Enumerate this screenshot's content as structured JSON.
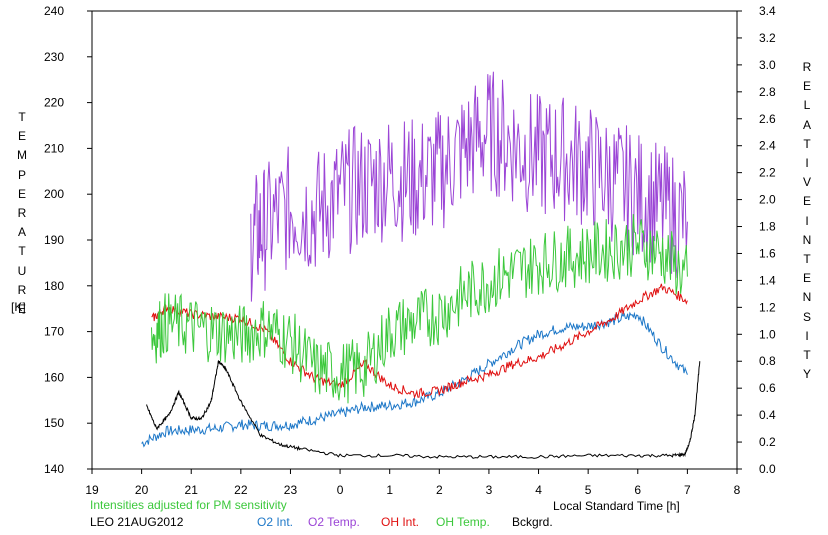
{
  "chart_data": {
    "type": "line",
    "left_axis_title": "TEMPERATURE",
    "left_axis_unit": "[K]",
    "right_axis_title": "RELATIVE INTENSITY",
    "xlabel": "Local Standard Time [h]",
    "x_ticks": [
      "19",
      "20",
      "21",
      "22",
      "23",
      "0",
      "1",
      "2",
      "3",
      "4",
      "5",
      "6",
      "7",
      "8"
    ],
    "x_range_hours": [
      19,
      32
    ],
    "y_left": {
      "ticks": [
        "140",
        "150",
        "160",
        "170",
        "180",
        "190",
        "200",
        "210",
        "220",
        "230",
        "240"
      ],
      "range": [
        140,
        240
      ]
    },
    "y_right": {
      "ticks": [
        "0.0",
        "0.2",
        "0.4",
        "0.6",
        "0.8",
        "1.0",
        "1.2",
        "1.4",
        "1.6",
        "1.8",
        "2.0",
        "2.2",
        "2.4",
        "2.6",
        "2.8",
        "3.0",
        "3.2",
        "3.4"
      ],
      "range": [
        0,
        3.4
      ]
    },
    "note": "Intensities adjusted for PM sensitivity",
    "station_date": "LEO 21AUG2012",
    "legend_placement": "bottom",
    "series": [
      {
        "name": "O2 Int.",
        "color": "#1e78c8",
        "axis": "right",
        "x": [
          20.0,
          20.5,
          21.0,
          21.5,
          22.0,
          22.5,
          23.0,
          23.5,
          24.0,
          24.5,
          25.0,
          25.5,
          26.0,
          26.5,
          27.0,
          27.5,
          28.0,
          28.5,
          29.0,
          29.5,
          30.0,
          30.5,
          31.0
        ],
        "y": [
          0.19,
          0.28,
          0.29,
          0.3,
          0.33,
          0.32,
          0.33,
          0.37,
          0.41,
          0.46,
          0.47,
          0.5,
          0.56,
          0.66,
          0.78,
          0.9,
          1.0,
          1.05,
          1.06,
          1.1,
          1.15,
          0.9,
          0.7
        ]
      },
      {
        "name": "O2 Temp.",
        "color": "#9b45d6",
        "axis": "left",
        "x": [
          22.2,
          22.5,
          23.0,
          23.5,
          24.0,
          24.5,
          25.0,
          25.5,
          26.0,
          26.5,
          27.0,
          27.5,
          28.0,
          28.5,
          29.0,
          29.5,
          30.0,
          30.5,
          31.0
        ],
        "y": [
          190,
          193,
          197,
          196,
          200,
          202,
          204,
          203,
          205,
          210,
          214,
          211,
          208,
          208,
          206,
          203,
          200,
          197,
          194
        ]
      },
      {
        "name": "OH Int.",
        "color": "#e01010",
        "axis": "right",
        "x": [
          20.2,
          20.5,
          21.0,
          21.5,
          22.0,
          22.5,
          23.0,
          23.5,
          24.0,
          24.5,
          25.0,
          25.5,
          26.0,
          26.5,
          27.0,
          27.5,
          28.0,
          28.5,
          29.0,
          29.5,
          30.0,
          30.5,
          31.0
        ],
        "y": [
          1.11,
          1.2,
          1.15,
          1.13,
          1.12,
          1.03,
          0.8,
          0.67,
          0.62,
          0.78,
          0.62,
          0.56,
          0.58,
          0.65,
          0.7,
          0.78,
          0.83,
          0.92,
          1.02,
          1.12,
          1.25,
          1.35,
          1.25
        ]
      },
      {
        "name": "OH Temp.",
        "color": "#3cc83c",
        "axis": "left",
        "x": [
          20.2,
          20.5,
          21.0,
          21.5,
          22.0,
          22.5,
          23.0,
          23.5,
          24.0,
          24.5,
          25.0,
          25.5,
          26.0,
          26.5,
          27.0,
          27.5,
          28.0,
          28.5,
          29.0,
          29.5,
          30.0,
          30.5,
          31.0
        ],
        "y": [
          169,
          172,
          171,
          170,
          169,
          171,
          168,
          162,
          161,
          162,
          170,
          172,
          174,
          178,
          181,
          183,
          185,
          186,
          187,
          188,
          189,
          187,
          182
        ]
      },
      {
        "name": "Bckgrd.",
        "color": "#000000",
        "axis": "right",
        "x": [
          20.1,
          20.3,
          20.55,
          20.75,
          21.0,
          21.2,
          21.4,
          21.55,
          21.7,
          22.0,
          22.4,
          22.8,
          23.2,
          24.0,
          25.0,
          26.0,
          27.0,
          28.0,
          29.0,
          30.0,
          30.7,
          30.95,
          31.05,
          31.15,
          31.25
        ],
        "y": [
          0.47,
          0.3,
          0.4,
          0.57,
          0.38,
          0.37,
          0.5,
          0.8,
          0.74,
          0.5,
          0.25,
          0.18,
          0.15,
          0.1,
          0.1,
          0.09,
          0.09,
          0.09,
          0.1,
          0.1,
          0.1,
          0.11,
          0.2,
          0.4,
          0.8
        ]
      }
    ]
  }
}
